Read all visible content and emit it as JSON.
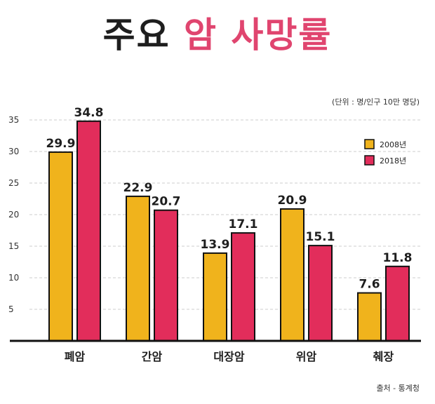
{
  "header": {
    "title_part1": "주요",
    "title_part2": "암 사망률",
    "unit_note": "(단위 : 명/인구 10만 명당)",
    "source": "출처 - 통계청"
  },
  "colors": {
    "series_2008": "#f0b31c",
    "series_2018": "#e22d5b",
    "title_accent": "#e0456f"
  },
  "chart_data": {
    "type": "bar",
    "title": "주요 암 사망률",
    "categories": [
      "폐암",
      "간암",
      "대장암",
      "위암",
      "췌장"
    ],
    "series": [
      {
        "name": "2008년",
        "values": [
          29.9,
          22.9,
          13.9,
          20.9,
          7.6
        ]
      },
      {
        "name": "2018년",
        "values": [
          34.8,
          20.7,
          17.1,
          15.1,
          11.8
        ]
      }
    ],
    "ylim": [
      0,
      35
    ],
    "yticks": [
      5,
      10,
      15,
      20,
      25,
      30,
      35
    ],
    "grid": true,
    "legend": "top-right"
  }
}
